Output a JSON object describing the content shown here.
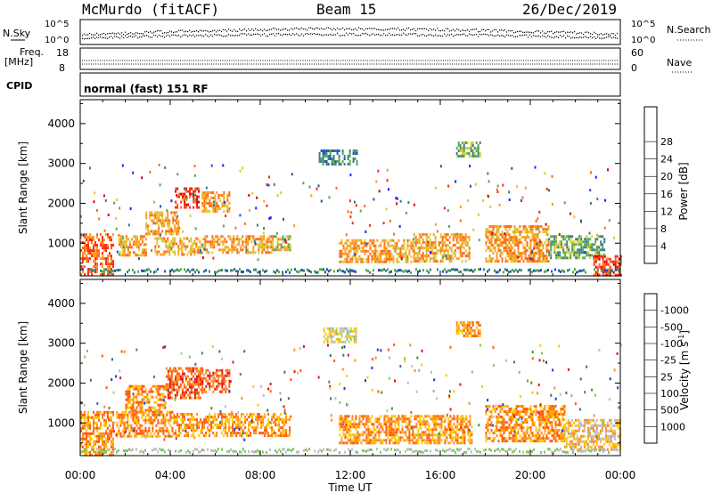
{
  "header": {
    "station": "McMurdo (fitACF)",
    "beam": "Beam 15",
    "date": "26/Dec/2019"
  },
  "status": {
    "nsky_label": "N.Sky",
    "nsearch_label": "N.Search",
    "freq_label": "Freq.",
    "freq_unit": "[MHz]",
    "nave_label": "Nave",
    "cpid_label": "CPID",
    "cpid_text": "normal (fast) 151 RF",
    "noise_ticks_left": [
      "10^5",
      "10^0"
    ],
    "noise_ticks_right": [
      "10^5",
      "10^0"
    ],
    "freq_ticks": [
      "18",
      "8"
    ],
    "nave_ticks": [
      "60",
      "0"
    ]
  },
  "chart_data": [
    {
      "type": "heatmap",
      "panel": "power",
      "xlabel": "Time UT",
      "ylabel": "Slant Range [km]",
      "x_ticks": [
        "00:00",
        "04:00",
        "08:00",
        "12:00",
        "16:00",
        "20:00",
        "00:00"
      ],
      "y_ticks": [
        1000,
        2000,
        3000,
        4000
      ],
      "xlim": [
        0,
        24
      ],
      "ylim": [
        180,
        4600
      ],
      "colorbar_label": "Power [dB]",
      "colorbar_ticks": [
        "4",
        "8",
        "12",
        "16",
        "20",
        "24",
        "28"
      ],
      "colorbar_colors": [
        "#1e1eff",
        "#2255b5",
        "#3c7f7d",
        "#55aa55",
        "#d6cc33",
        "#ff9922",
        "#ff6a1a",
        "#ff2a10",
        "#dd0000"
      ],
      "regions": [
        {
          "t0": 0.0,
          "t1": 1.5,
          "r0": 200,
          "r1": 1250,
          "level": 6
        },
        {
          "t0": 1.7,
          "t1": 2.9,
          "r0": 700,
          "r1": 1200,
          "level": 5
        },
        {
          "t0": 2.9,
          "t1": 4.4,
          "r0": 1200,
          "r1": 1800,
          "level": 5
        },
        {
          "t0": 4.2,
          "t1": 5.3,
          "r0": 1900,
          "r1": 2400,
          "level": 7
        },
        {
          "t0": 5.4,
          "t1": 6.6,
          "r0": 1800,
          "r1": 2300,
          "level": 5
        },
        {
          "t0": 3.3,
          "t1": 5.2,
          "r0": 700,
          "r1": 1150,
          "level": 5
        },
        {
          "t0": 5.2,
          "t1": 8.6,
          "r0": 750,
          "r1": 1200,
          "level": 5
        },
        {
          "t0": 8.5,
          "t1": 9.3,
          "r0": 800,
          "r1": 1200,
          "level": 4
        },
        {
          "t0": 10.6,
          "t1": 12.3,
          "r0": 2950,
          "r1": 3350,
          "level": 2
        },
        {
          "t0": 11.5,
          "t1": 14.8,
          "r0": 500,
          "r1": 1100,
          "level": 5
        },
        {
          "t0": 14.8,
          "t1": 17.3,
          "r0": 550,
          "r1": 1250,
          "level": 5
        },
        {
          "t0": 16.7,
          "t1": 17.8,
          "r0": 3200,
          "r1": 3550,
          "level": 3
        },
        {
          "t0": 18.0,
          "t1": 20.8,
          "r0": 550,
          "r1": 1450,
          "level": 5
        },
        {
          "t0": 20.8,
          "t1": 23.3,
          "r0": 650,
          "r1": 1200,
          "level": 3
        },
        {
          "t0": 22.8,
          "t1": 24.0,
          "r0": 180,
          "r1": 700,
          "level": 7
        }
      ]
    },
    {
      "type": "heatmap",
      "panel": "velocity",
      "xlabel": "Time UT",
      "ylabel": "Slant Range [km]",
      "x_ticks": [
        "00:00",
        "04:00",
        "08:00",
        "12:00",
        "16:00",
        "20:00",
        "00:00"
      ],
      "y_ticks": [
        1000,
        2000,
        3000,
        4000
      ],
      "xlim": [
        0,
        24
      ],
      "ylim": [
        180,
        4600
      ],
      "colorbar_label": "Velocity [m s",
      "colorbar_unit_exp": "-1",
      "colorbar_ticks": [
        "1000",
        "500",
        "100",
        "25",
        "-25",
        "-100",
        "-500",
        "-1000"
      ],
      "colorbar_colors": [
        "#1e3cc8",
        "#3c6e82",
        "#3c963c",
        "#82c85a",
        "#bebebe",
        "#ffc800",
        "#ff8c1e",
        "#ff5a14",
        "#e61414"
      ],
      "regions": [
        {
          "t0": 0.0,
          "t1": 1.5,
          "r0": 200,
          "r1": 1300,
          "level": 6
        },
        {
          "t0": 2.0,
          "t1": 3.8,
          "r0": 1300,
          "r1": 1950,
          "level": 6
        },
        {
          "t0": 3.8,
          "t1": 5.4,
          "r0": 1600,
          "r1": 2400,
          "level": 7
        },
        {
          "t0": 5.4,
          "t1": 6.6,
          "r0": 1800,
          "r1": 2350,
          "level": 7
        },
        {
          "t0": 1.6,
          "t1": 4.2,
          "r0": 650,
          "r1": 1300,
          "level": 6
        },
        {
          "t0": 4.2,
          "t1": 9.3,
          "r0": 700,
          "r1": 1250,
          "level": 6
        },
        {
          "t0": 10.8,
          "t1": 12.3,
          "r0": 3000,
          "r1": 3400,
          "level": 4
        },
        {
          "t0": 11.5,
          "t1": 17.4,
          "r0": 500,
          "r1": 1200,
          "level": 6
        },
        {
          "t0": 16.7,
          "t1": 17.8,
          "r0": 3200,
          "r1": 3550,
          "level": 6
        },
        {
          "t0": 18.0,
          "t1": 21.5,
          "r0": 550,
          "r1": 1450,
          "level": 6
        },
        {
          "t0": 21.5,
          "t1": 24.0,
          "r0": 300,
          "r1": 1100,
          "level": 5
        }
      ]
    }
  ]
}
